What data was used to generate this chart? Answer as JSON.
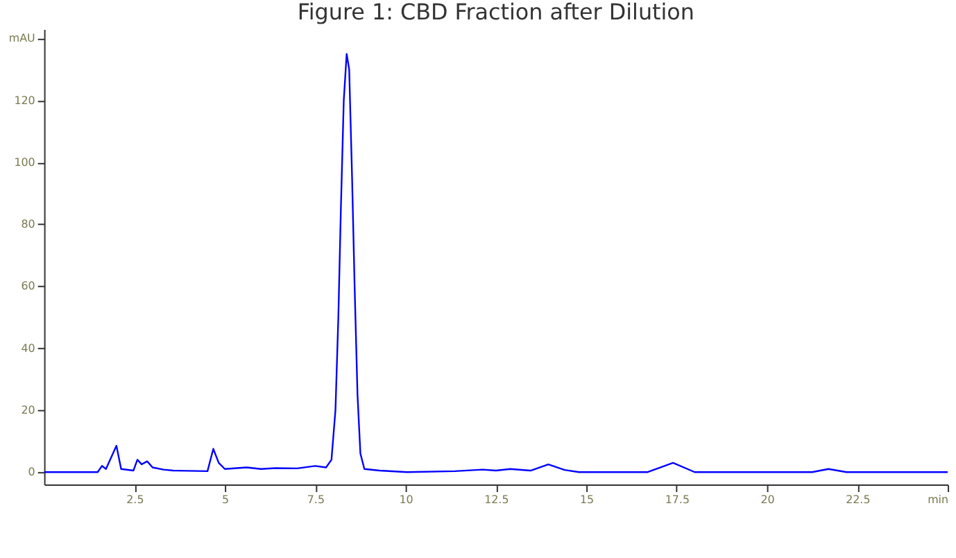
{
  "chart_data": {
    "type": "line",
    "title": "Figure 1: CBD Fraction after Dilution",
    "x": [
      0,
      1.48,
      1.6,
      1.71,
      2.0,
      2.13,
      2.47,
      2.58,
      2.7,
      2.85,
      3.0,
      3.3,
      3.57,
      4.52,
      4.68,
      4.83,
      5.0,
      5.6,
      6.0,
      6.4,
      7.0,
      7.5,
      7.8,
      7.95,
      8.06,
      8.14,
      8.21,
      8.29,
      8.37,
      8.44,
      8.52,
      8.59,
      8.67,
      8.75,
      8.86,
      9.28,
      10.04,
      11.37,
      12.13,
      12.5,
      12.9,
      13.46,
      13.95,
      14.4,
      14.8,
      16.7,
      17.4,
      18.0,
      21.25,
      21.7,
      22.2,
      25
    ],
    "series": [
      {
        "color": "#0000ff",
        "values": [
          0,
          0,
          2,
          1,
          8.5,
          1,
          0.5,
          4,
          2.5,
          3.5,
          1.5,
          0.8,
          0.5,
          0.3,
          7.5,
          3,
          1,
          1.5,
          1,
          1.3,
          1.2,
          2,
          1.5,
          4,
          20,
          50,
          85,
          120,
          135,
          130,
          95,
          60,
          25,
          6,
          1,
          0.5,
          0,
          0.3,
          0.8,
          0.5,
          1,
          0.5,
          2.5,
          0.7,
          0,
          0,
          3,
          0,
          0,
          1,
          0,
          0
        ]
      }
    ],
    "xlim": [
      0,
      25
    ],
    "ylim": [
      -4,
      143
    ],
    "xticks": [
      2.5,
      5,
      7.5,
      10,
      12.5,
      15,
      17.5,
      20,
      22.5,
      {
        "value": 25,
        "label": "min"
      }
    ],
    "yticks": [
      0,
      20,
      40,
      60,
      80,
      100,
      120,
      {
        "value": 140,
        "label": "mAU"
      }
    ],
    "grid": false,
    "marker": "none",
    "line_style": "solid"
  }
}
